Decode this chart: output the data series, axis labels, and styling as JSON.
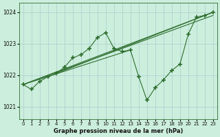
{
  "xlabel": "Graphe pression niveau de la mer (hPa)",
  "background_color": "#cceedd",
  "grid_color": "#aacccc",
  "line_color": "#2d6e2d",
  "ylim": [
    1020.6,
    1024.3
  ],
  "xlim": [
    -0.5,
    23.5
  ],
  "yticks": [
    1021,
    1022,
    1023,
    1024
  ],
  "xticks": [
    0,
    1,
    2,
    3,
    4,
    5,
    6,
    7,
    8,
    9,
    10,
    11,
    12,
    13,
    14,
    15,
    16,
    17,
    18,
    19,
    20,
    21,
    22,
    23
  ],
  "zigzag_x": [
    0,
    1,
    2,
    3,
    4,
    5,
    6,
    7,
    8,
    9,
    10,
    11,
    12,
    13,
    14,
    15,
    16,
    17,
    18,
    19,
    20,
    21,
    22,
    23
  ],
  "zigzag_y": [
    1021.7,
    1021.55,
    1021.8,
    1021.95,
    1022.05,
    1022.25,
    1022.55,
    1022.65,
    1022.85,
    1023.2,
    1023.35,
    1022.85,
    1022.75,
    1022.8,
    1021.95,
    1021.2,
    1021.6,
    1021.85,
    1022.15,
    1022.35,
    1023.3,
    1023.85,
    1023.9,
    1024.0
  ],
  "straight_lines": [
    {
      "x": [
        0,
        23
      ],
      "y": [
        1021.7,
        1024.0
      ]
    },
    {
      "x": [
        0,
        23
      ],
      "y": [
        1021.7,
        1023.9
      ]
    },
    {
      "x": [
        0,
        13
      ],
      "y": [
        1021.7,
        1022.8
      ]
    },
    {
      "x": [
        4,
        23
      ],
      "y": [
        1022.05,
        1024.0
      ]
    }
  ]
}
